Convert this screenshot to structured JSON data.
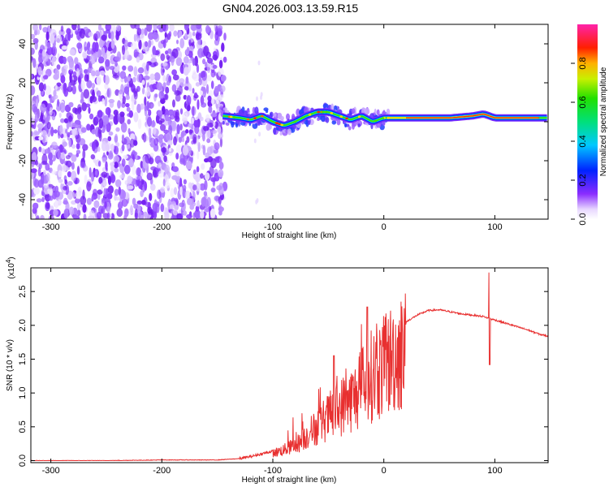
{
  "figure_title": "GN04.2026.003.13.59.R15",
  "chart_data": [
    {
      "type": "heatmap",
      "name": "spectrogram",
      "xlabel": "Height of straight line (km)",
      "ylabel": "Frequency (Hz)",
      "xlim": [
        -318,
        148
      ],
      "ylim": [
        -50,
        50
      ],
      "xticks": [
        -300,
        -200,
        -100,
        0,
        100
      ],
      "yticks": [
        -40,
        -20,
        0,
        20,
        40
      ],
      "noise_region_x": [
        -318,
        -143
      ],
      "ridge": {
        "x": [
          -145,
          -130,
          -120,
          -110,
          -100,
          -90,
          -80,
          -70,
          -60,
          -50,
          -40,
          -30,
          -20,
          -10,
          0,
          10,
          20,
          40,
          60,
          80,
          90,
          100,
          120,
          148
        ],
        "y": [
          3,
          2,
          1,
          3,
          0,
          -2,
          0,
          3,
          5,
          5,
          3,
          1,
          3,
          0,
          2,
          2,
          2,
          2,
          2,
          3,
          4,
          2,
          2,
          2
        ]
      },
      "colorbar": {
        "label": "Normalized spectral amplitude",
        "range": [
          0.0,
          1.0
        ],
        "ticks": [
          "0.0",
          "0.2",
          "0.4",
          "0.6",
          "0.8"
        ]
      }
    },
    {
      "type": "line",
      "name": "snr",
      "xlabel": "Height of straight line (km)",
      "ylabel": "SNR (10 * v/v)",
      "multiplier_label": "(x10",
      "multiplier_exp": "4",
      "xlim": [
        -318,
        148
      ],
      "ylim": [
        -0.03,
        2.85
      ],
      "xticks": [
        -300,
        -200,
        -100,
        0,
        100
      ],
      "yticks": [
        "0.0",
        "0.5",
        "1.0",
        "1.5",
        "2.0",
        "2.5"
      ],
      "color": "#e83030",
      "series": [
        {
          "name": "SNR",
          "x": [
            -318,
            -250,
            -200,
            -150,
            -130,
            -120,
            -110,
            -100,
            -90,
            -80,
            -75,
            -70,
            -65,
            -60,
            -55,
            -50,
            -45,
            -40,
            -35,
            -30,
            -25,
            -20,
            -15,
            -10,
            -5,
            0,
            10,
            20,
            30,
            40,
            50,
            60,
            70,
            80,
            90,
            95,
            100,
            110,
            120,
            130,
            140,
            148
          ],
          "y": [
            0.0,
            0.0,
            0.01,
            0.01,
            0.03,
            0.06,
            0.1,
            0.14,
            0.2,
            0.28,
            0.35,
            0.45,
            0.55,
            0.63,
            0.72,
            0.8,
            0.88,
            0.97,
            1.05,
            1.12,
            1.2,
            1.35,
            1.5,
            1.58,
            1.65,
            1.72,
            1.95,
            2.05,
            2.15,
            2.22,
            2.23,
            2.2,
            2.17,
            2.15,
            2.13,
            2.1,
            2.08,
            2.03,
            1.98,
            1.93,
            1.87,
            1.84
          ]
        }
      ],
      "spikes": [
        {
          "x": -45,
          "y": 1.55
        },
        {
          "x": -15,
          "y": 2.27
        },
        {
          "x": 95,
          "y": 2.78
        },
        {
          "x": 95.5,
          "y": 1.42
        }
      ]
    }
  ]
}
